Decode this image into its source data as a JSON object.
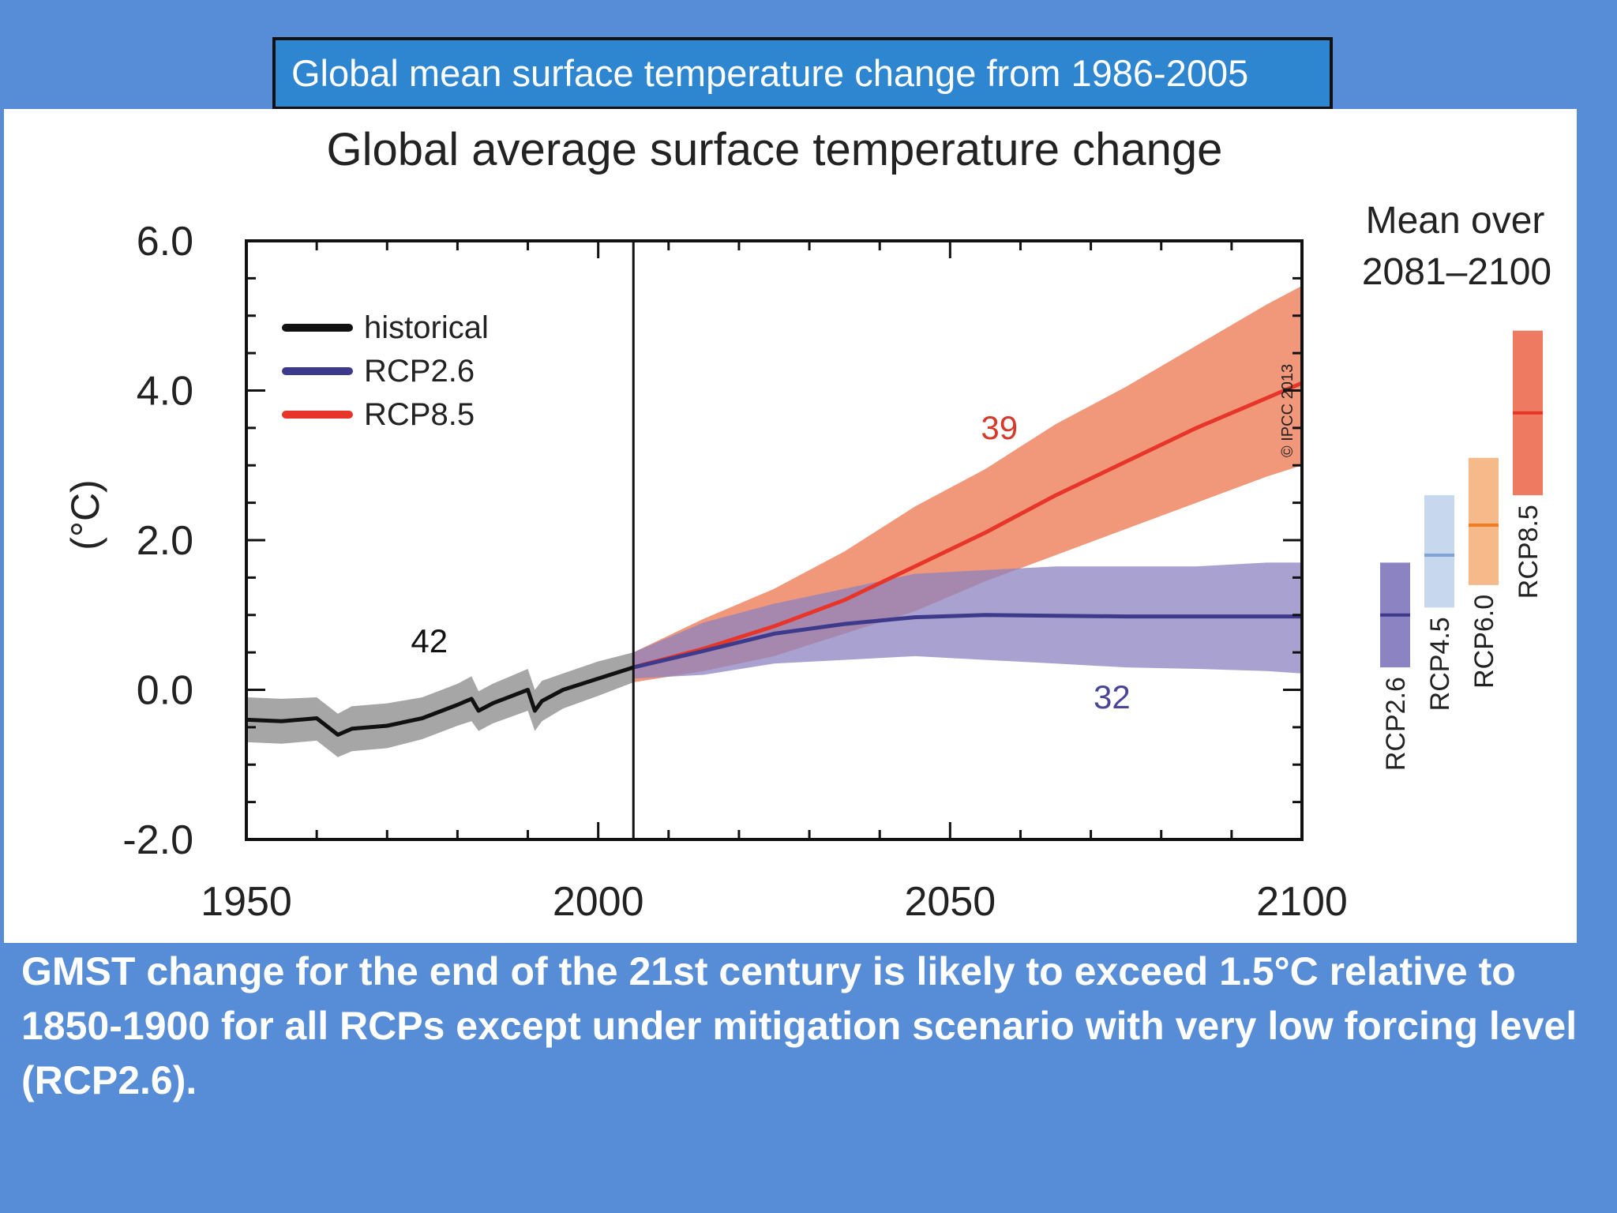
{
  "header": {
    "title": "Global mean surface temperature change from 1986-2005"
  },
  "caption": {
    "text": "GMST change for the end of the 21st century is  likely to exceed 1.5°C relative to 1850-1900 for all RCPs except under mitigation scenario with very low forcing level (RCP2.6)."
  },
  "colors": {
    "background": "#578dd6",
    "historical": "#111111",
    "historical_band": "#9c9c9c",
    "rcp26": "#3d3a8c",
    "rcp26_band": "#8c83c2",
    "rcp85": "#e8352a",
    "rcp85_band": "#ef8c6c",
    "rcp45_bar": "#c7d8ee",
    "rcp45_line": "#7fa3d6",
    "rcp60_bar": "#f5b98a",
    "rcp60_line": "#f07c24",
    "rcp85_bar": "#ee7a62"
  },
  "chart_data": {
    "type": "line",
    "title": "Global average surface temperature change",
    "ylabel": "(°C)",
    "xlabel": "",
    "xlim": [
      1950,
      2100
    ],
    "ylim": [
      -2.0,
      6.0
    ],
    "xticks": [
      "1950",
      "2000",
      "2050",
      "2100"
    ],
    "yticks": [
      "6.0",
      "4.0",
      "2.0",
      "0.0",
      "-2.0"
    ],
    "divider_year": 2005,
    "watermark": "© IPCC 2013",
    "legend": {
      "position": "top-left",
      "entries": [
        {
          "name": "historical",
          "color": "#111111"
        },
        {
          "name": "RCP2.6",
          "color": "#3d3a8c"
        },
        {
          "name": "RCP8.5",
          "color": "#e8352a"
        }
      ]
    },
    "series": [
      {
        "name": "historical",
        "x": [
          1950,
          1955,
          1960,
          1963,
          1965,
          1970,
          1975,
          1980,
          1982,
          1983,
          1985,
          1990,
          1991,
          1992,
          1995,
          2000,
          2005
        ],
        "y": [
          -0.4,
          -0.42,
          -0.38,
          -0.6,
          -0.52,
          -0.48,
          -0.38,
          -0.2,
          -0.12,
          -0.28,
          -0.18,
          0.0,
          -0.28,
          -0.15,
          0.0,
          0.15,
          0.3
        ],
        "lower": [
          -0.7,
          -0.72,
          -0.68,
          -0.9,
          -0.82,
          -0.78,
          -0.66,
          -0.48,
          -0.42,
          -0.55,
          -0.45,
          -0.28,
          -0.55,
          -0.42,
          -0.25,
          -0.08,
          0.1
        ],
        "upper": [
          -0.1,
          -0.12,
          -0.1,
          -0.32,
          -0.22,
          -0.18,
          -0.1,
          0.08,
          0.18,
          -0.02,
          0.08,
          0.28,
          0.0,
          0.12,
          0.22,
          0.38,
          0.5
        ],
        "label": "42",
        "label_at": [
          1976,
          0.5
        ]
      },
      {
        "name": "RCP2.6",
        "x": [
          2005,
          2015,
          2025,
          2035,
          2045,
          2055,
          2065,
          2075,
          2085,
          2095,
          2100
        ],
        "y": [
          0.3,
          0.52,
          0.75,
          0.88,
          0.97,
          1.0,
          0.99,
          0.98,
          0.98,
          0.98,
          0.98
        ],
        "lower": [
          0.15,
          0.2,
          0.35,
          0.4,
          0.45,
          0.4,
          0.35,
          0.3,
          0.28,
          0.25,
          0.22
        ],
        "upper": [
          0.5,
          0.9,
          1.15,
          1.35,
          1.55,
          1.6,
          1.65,
          1.65,
          1.65,
          1.7,
          1.7
        ],
        "label": "32",
        "label_at": [
          2073,
          -0.25
        ]
      },
      {
        "name": "RCP8.5",
        "x": [
          2005,
          2015,
          2025,
          2035,
          2045,
          2055,
          2065,
          2075,
          2085,
          2095,
          2100
        ],
        "y": [
          0.3,
          0.55,
          0.85,
          1.2,
          1.65,
          2.1,
          2.6,
          3.05,
          3.5,
          3.9,
          4.1
        ],
        "lower": [
          0.1,
          0.25,
          0.45,
          0.75,
          1.05,
          1.45,
          1.8,
          2.15,
          2.5,
          2.85,
          3.0
        ],
        "upper": [
          0.5,
          0.95,
          1.35,
          1.85,
          2.45,
          2.95,
          3.55,
          4.05,
          4.6,
          5.15,
          5.4
        ],
        "label": "39",
        "label_at": [
          2057,
          3.35
        ]
      }
    ],
    "side_panel": {
      "title_line1": "Mean over",
      "title_line2": "2081–2100",
      "bars": [
        {
          "name": "RCP2.6",
          "mean": 1.0,
          "low": 0.3,
          "high": 1.7,
          "bar_color": "#8c83c2",
          "line_color": "#3d3a8c"
        },
        {
          "name": "RCP4.5",
          "mean": 1.8,
          "low": 1.1,
          "high": 2.6,
          "bar_color": "#c7d8ee",
          "line_color": "#7fa3d6"
        },
        {
          "name": "RCP6.0",
          "mean": 2.2,
          "low": 1.4,
          "high": 3.1,
          "bar_color": "#f5b98a",
          "line_color": "#f07c24"
        },
        {
          "name": "RCP8.5",
          "mean": 3.7,
          "low": 2.6,
          "high": 4.8,
          "bar_color": "#ee7a62",
          "line_color": "#e8352a"
        }
      ]
    }
  }
}
